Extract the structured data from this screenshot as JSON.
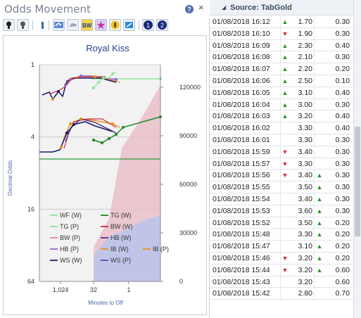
{
  "panel": {
    "title": "Odds Movement",
    "help_icon": "?",
    "close_icon": "×"
  },
  "toolbar": {
    "buttons": [
      "trophy-icon",
      "trophy-icon",
      "bar-icon",
      "horse-icon",
      "horse-icon",
      "bw-icon",
      "star-icon",
      "info-icon",
      "flag-icon",
      "number-1-icon",
      "number-2-icon"
    ]
  },
  "chart_data": {
    "type": "line",
    "title": "Royal Kiss",
    "xlabel": "Minutes to Off",
    "ylabel": "Decimal Odds",
    "x_ticks": [
      "1,024",
      "32",
      "1"
    ],
    "y_left_ticks": [
      "1",
      "4",
      "16",
      "64"
    ],
    "y_right_ticks": [
      "0",
      "30000",
      "60000",
      "90000",
      "120000"
    ],
    "y_left_scale": "log",
    "legend": [
      {
        "name": "WF (W)",
        "color": "#90e49a"
      },
      {
        "name": "TG (W)",
        "color": "#1f8a1f"
      },
      {
        "name": "TG (P)",
        "color": "#90e49a"
      },
      {
        "name": "BW (W)",
        "color": "#c0303a"
      },
      {
        "name": "BW (P)",
        "color": "#e08a8a"
      },
      {
        "name": "HB (W)",
        "color": "#5a2a8a"
      },
      {
        "name": "HB (P)",
        "color": "#9a60d8"
      },
      {
        "name": "IB (W)",
        "color": "#e89020"
      },
      {
        "name": "IB (P)",
        "color": "#e89020"
      },
      {
        "name": "WS (W)",
        "color": "#1a1a6a"
      },
      {
        "name": "WS (P)",
        "color": "#5050b0"
      }
    ],
    "legend_placement": "bottom-left"
  },
  "source": {
    "caret": "◢",
    "label": "Source: TabGold"
  },
  "rows": [
    {
      "time": "01/08/2018 16:12",
      "arr1": "up",
      "odds": "1.70",
      "arr2": "",
      "stake": "0.30"
    },
    {
      "time": "01/08/2018 16:10",
      "arr1": "down",
      "odds": "1.90",
      "arr2": "",
      "stake": "0.30"
    },
    {
      "time": "01/08/2018 16:09",
      "arr1": "up",
      "odds": "2.30",
      "arr2": "",
      "stake": "0.40"
    },
    {
      "time": "01/08/2018 16:08",
      "arr1": "up",
      "odds": "2.10",
      "arr2": "",
      "stake": "0.30"
    },
    {
      "time": "01/08/2018 16:07",
      "arr1": "up",
      "odds": "2.20",
      "arr2": "",
      "stake": "0.20"
    },
    {
      "time": "01/08/2018 16:06",
      "arr1": "up",
      "odds": "2.50",
      "arr2": "",
      "stake": "0.10"
    },
    {
      "time": "01/08/2018 16:05",
      "arr1": "up",
      "odds": "3.10",
      "arr2": "",
      "stake": "0.40"
    },
    {
      "time": "01/08/2018 16:04",
      "arr1": "up",
      "odds": "3.00",
      "arr2": "",
      "stake": "0.30"
    },
    {
      "time": "01/08/2018 16:03",
      "arr1": "up",
      "odds": "3.20",
      "arr2": "",
      "stake": "0.40"
    },
    {
      "time": "01/08/2018 16:02",
      "arr1": "",
      "odds": "3.30",
      "arr2": "",
      "stake": "0.40"
    },
    {
      "time": "01/08/2018 16:01",
      "arr1": "",
      "odds": "3.30",
      "arr2": "",
      "stake": "0.30"
    },
    {
      "time": "01/08/2018 15:59",
      "arr1": "down",
      "odds": "3.40",
      "arr2": "",
      "stake": "0.30"
    },
    {
      "time": "01/08/2018 15:57",
      "arr1": "down",
      "odds": "3.30",
      "arr2": "",
      "stake": "0.30"
    },
    {
      "time": "01/08/2018 15:56",
      "arr1": "down",
      "odds": "3.40",
      "arr2": "up",
      "stake": "0.30"
    },
    {
      "time": "01/08/2018 15:55",
      "arr1": "",
      "odds": "3.50",
      "arr2": "up",
      "stake": "0.30"
    },
    {
      "time": "01/08/2018 15:54",
      "arr1": "",
      "odds": "3.40",
      "arr2": "up",
      "stake": "0.30"
    },
    {
      "time": "01/08/2018 15:53",
      "arr1": "",
      "odds": "3.60",
      "arr2": "up",
      "stake": "0.30"
    },
    {
      "time": "01/08/2018 15:52",
      "arr1": "",
      "odds": "3.50",
      "arr2": "up",
      "stake": "0.20"
    },
    {
      "time": "01/08/2018 15:48",
      "arr1": "",
      "odds": "3.30",
      "arr2": "up",
      "stake": "0.20"
    },
    {
      "time": "01/08/2018 15:47",
      "arr1": "",
      "odds": "3.10",
      "arr2": "up",
      "stake": "0.20"
    },
    {
      "time": "01/08/2018 15:46",
      "arr1": "down",
      "odds": "3.20",
      "arr2": "up",
      "stake": "0.20"
    },
    {
      "time": "01/08/2018 15:44",
      "arr1": "down",
      "odds": "3.20",
      "arr2": "up",
      "stake": "0.60"
    },
    {
      "time": "01/08/2018 15:43",
      "arr1": "",
      "odds": "3.20",
      "arr2": "",
      "stake": "0.60"
    },
    {
      "time": "01/08/2018 15:42",
      "arr1": "",
      "odds": "2.80",
      "arr2": "",
      "stake": "0.70"
    }
  ]
}
